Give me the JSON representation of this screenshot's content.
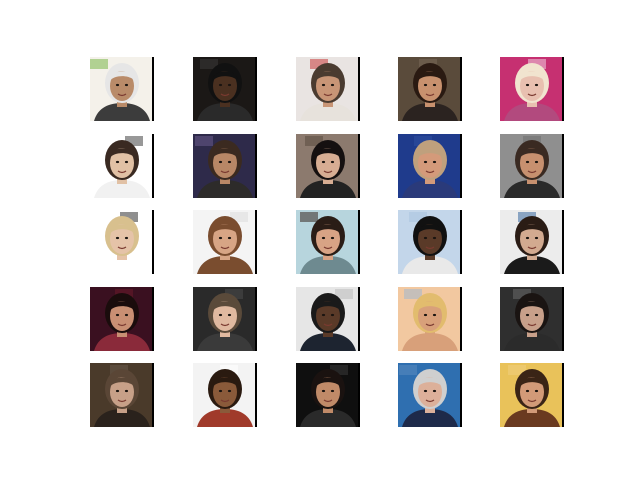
{
  "figure": {
    "rows": 5,
    "cols": 5,
    "images": [
      {
        "bg": "#f4f1ea",
        "skin": "#b98b69",
        "hair": "#e6e6e6",
        "cloth": "#3c3c3c",
        "accent": "#7ab648"
      },
      {
        "bg": "#1b1816",
        "skin": "#4a3020",
        "hair": "#111111",
        "cloth": "#2a2a2a",
        "accent": "#3a3a3a"
      },
      {
        "bg": "#e9e4e2",
        "skin": "#c89576",
        "hair": "#4a3b30",
        "cloth": "#e7e2dc",
        "accent": "#c93b3b"
      },
      {
        "bg": "#5a4b3b",
        "skin": "#c8916e",
        "hair": "#2a1a12",
        "cloth": "#2b2320",
        "accent": "#7a6a5a"
      },
      {
        "bg": "#c63071",
        "skin": "#e8c0b0",
        "hair": "#f1e4cf",
        "cloth": "#b24a7e",
        "accent": "#f0d0e0"
      },
      {
        "bg": "#ffffff",
        "skin": "#e1c1a5",
        "hair": "#3a2a22",
        "cloth": "#f1f1f1",
        "accent": "#444444"
      },
      {
        "bg": "#2e2a4a",
        "skin": "#b88766",
        "hair": "#3b2a20",
        "cloth": "#2d2b2a",
        "accent": "#6a5a8a"
      },
      {
        "bg": "#8c7a6e",
        "skin": "#d7ad93",
        "hair": "#151010",
        "cloth": "#222222",
        "accent": "#5a4a40"
      },
      {
        "bg": "#1f3b8c",
        "skin": "#d49a7a",
        "hair": "#bfa07d",
        "cloth": "#2a3a7a",
        "accent": "#3050a0"
      },
      {
        "bg": "#8f8f8f",
        "skin": "#c7906f",
        "hair": "#3a2a22",
        "cloth": "#2a2a2a",
        "accent": "#707070"
      },
      {
        "bg": "#ffffff",
        "skin": "#e5c3a8",
        "hair": "#d8c08e",
        "cloth": "#ffffff",
        "accent": "#333333"
      },
      {
        "bg": "#f4f4f4",
        "skin": "#d7a585",
        "hair": "#7a4d2f",
        "cloth": "#7a4d2f",
        "accent": "#dddddd"
      },
      {
        "bg": "#b7d5dd",
        "skin": "#d8a385",
        "hair": "#2a1d16",
        "cloth": "#6e8a90",
        "accent": "#3a2a22"
      },
      {
        "bg": "#c3d6ea",
        "skin": "#5a3a28",
        "hair": "#111111",
        "cloth": "#e9e9e9",
        "accent": "#aac4de"
      },
      {
        "bg": "#ececec",
        "skin": "#d2aa90",
        "hair": "#2a1c15",
        "cloth": "#1a1a1a",
        "accent": "#3a6aa0"
      },
      {
        "bg": "#3a1020",
        "skin": "#c98f73",
        "hair": "#1a0c0c",
        "cloth": "#8a2a3a",
        "accent": "#6a1a2a"
      },
      {
        "bg": "#2a2a2a",
        "skin": "#e0b9a0",
        "hair": "#5a4a3a",
        "cloth": "#3a3a3a",
        "accent": "#4a4a4a"
      },
      {
        "bg": "#e6e6e6",
        "skin": "#5a3a28",
        "hair": "#1a1a1a",
        "cloth": "#1d2430",
        "accent": "#bbbbbb"
      },
      {
        "bg": "#f2c8a0",
        "skin": "#d8a07a",
        "hair": "#e2bc6e",
        "cloth": "#d8a07a",
        "accent": "#a0b8d0"
      },
      {
        "bg": "#2f2f2f",
        "skin": "#c8a08a",
        "hair": "#1a1412",
        "cloth": "#2b2b2b",
        "accent": "#6a6a6a"
      },
      {
        "bg": "#4a3a2a",
        "skin": "#c7a088",
        "hair": "#5a4636",
        "cloth": "#2a221c",
        "accent": "#6a5a4a"
      },
      {
        "bg": "#f3f3f3",
        "skin": "#8a5a3a",
        "hair": "#2a1a10",
        "cloth": "#a03a2a",
        "accent": "#ffffff"
      },
      {
        "bg": "#0f0f0f",
        "skin": "#c08a68",
        "hair": "#1a1210",
        "cloth": "#2a2a2a",
        "accent": "#3a3a3a"
      },
      {
        "bg": "#2f6fb0",
        "skin": "#dcb09a",
        "hair": "#cfcfcf",
        "cloth": "#1e2a4a",
        "accent": "#5a8ac0"
      },
      {
        "bg": "#e9c25a",
        "skin": "#d29a78",
        "hair": "#3a2416",
        "cloth": "#6a3a20",
        "accent": "#f0d080"
      }
    ]
  }
}
